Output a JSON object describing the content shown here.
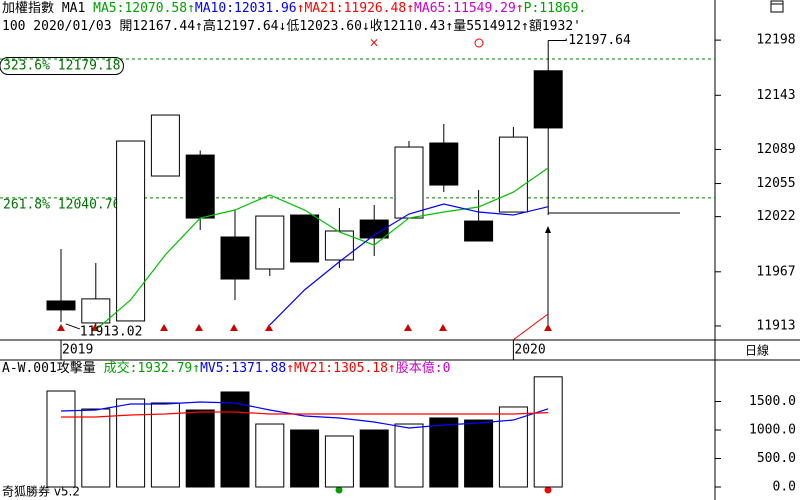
{
  "chart_data": [
    {
      "type": "candlestick",
      "header": [
        {
          "text": "加權指數 MA1 ",
          "color": "#000000"
        },
        {
          "text": "MA5:12070.58",
          "color": "#00a000"
        },
        {
          "text": "↑",
          "color": "#00a000"
        },
        {
          "text": "MA10:12031.96",
          "color": "#0000ff"
        },
        {
          "text": "↑",
          "color": "#ff0000"
        },
        {
          "text": "MA21:11926.48",
          "color": "#ff0000"
        },
        {
          "text": "↑",
          "color": "#ff0000"
        },
        {
          "text": "MA65:11549.29",
          "color": "#cc00cc"
        },
        {
          "text": "↑",
          "color": "#ff0000"
        },
        {
          "text": "P:11869.",
          "color": "#00a000"
        }
      ],
      "info": [
        {
          "text": "100 2020/01/03 ",
          "color": "#000000"
        },
        {
          "text": "開12167.44↑",
          "color": "#000000"
        },
        {
          "text": "高12197.64↓",
          "color": "#000000"
        },
        {
          "text": "低12023.60↓",
          "color": "#000000"
        },
        {
          "text": "收12110.43↑",
          "color": "#000000"
        },
        {
          "text": "量5514912↑",
          "color": "#000000"
        },
        {
          "text": "額1932'",
          "color": "#000000"
        }
      ],
      "categories": [
        "2019",
        null,
        null,
        null,
        null,
        null,
        null,
        null,
        null,
        null,
        null,
        null,
        null,
        "2020",
        null
      ],
      "open": [
        11937.9,
        11916.0,
        11918.0,
        12062.5,
        12083.4,
        12001.7,
        11969.8,
        12023.6,
        11978.8,
        12018.6,
        12020.6,
        12095.4,
        12017.6,
        12026.6,
        12167.44
      ],
      "high": [
        11989.7,
        11975.8,
        12097.4,
        12123.3,
        12088.0,
        12028.6,
        12022.6,
        12023.6,
        12030.6,
        12033.6,
        12097.4,
        12114.3,
        12048.5,
        12111.3,
        12197.64
      ],
      "low": [
        11917.0,
        11913.02,
        11918.0,
        12062.5,
        12008.7,
        11938.9,
        11962.8,
        11976.8,
        11970.8,
        11982.8,
        12020.6,
        12046.5,
        11997.7,
        12026.6,
        12023.6
      ],
      "close": [
        11929.0,
        11940.0,
        12097.4,
        12123.3,
        12020.6,
        11959.8,
        12022.6,
        11976.8,
        12007.7,
        12000.7,
        12091.4,
        12053.5,
        11997.7,
        12101.3,
        12110.43
      ],
      "series": [
        {
          "color": "#00c000",
          "values": [
            null,
            11909,
            11939,
            11984,
            12020.6,
            12028.6,
            12043.6,
            12028.6,
            12006.7,
            11993.7,
            12020.6,
            12026.6,
            12031.6,
            12046.5,
            12070.58
          ]
        },
        {
          "color": "#0000ff",
          "values": [
            null,
            null,
            null,
            null,
            null,
            null,
            11914,
            11949,
            11977,
            12003.7,
            12024.6,
            12034.6,
            12026.6,
            12023.6,
            12031.96
          ]
        }
      ],
      "levels": [
        {
          "label": "323.6% 12179.18",
          "value": 12179.18
        },
        {
          "label": "261.8% 12040.76",
          "value": 12040.76
        }
      ],
      "high_label": 12197.64,
      "low_label": 11913.02,
      "ylim": [
        11899,
        12238
      ],
      "yticks": [
        11913,
        11967,
        12022,
        12055,
        12089,
        12143,
        12198
      ],
      "period": "日線"
    },
    {
      "type": "bar",
      "header": [
        {
          "text": "A-W.001攻擊量 ",
          "color": "#000000"
        },
        {
          "text": "成交:1932.79",
          "color": "#00a000"
        },
        {
          "text": "↑",
          "color": "#00a000"
        },
        {
          "text": "MV5:1371.88",
          "color": "#0000ff"
        },
        {
          "text": "↑",
          "color": "#ff0000"
        },
        {
          "text": "MV21:1305.18",
          "color": "#ff0000"
        },
        {
          "text": "↑",
          "color": "#ff0000"
        },
        {
          "text": "股本億:0",
          "color": "#cc00cc"
        }
      ],
      "values": [
        1684,
        1368,
        1544,
        1474,
        1351,
        1667,
        1105,
        1000,
        895,
        1000,
        1105,
        1211,
        1175,
        1404,
        1932.79
      ],
      "colors": [
        "#ffffff",
        "#ffffff",
        "#ffffff",
        "#ffffff",
        "#000000",
        "#000000",
        "#ffffff",
        "#000000",
        "#ffffff",
        "#000000",
        "#ffffff",
        "#000000",
        "#000000",
        "#ffffff",
        "#ffffff"
      ],
      "series": [
        {
          "color": "#0000ff",
          "values": [
            1333,
            1351,
            1456,
            1456,
            1491,
            1474,
            1351,
            1246,
            1211,
            1140,
            1035,
            1088,
            1123,
            1175,
            1371.88
          ]
        },
        {
          "color": "#ff0000",
          "values": [
            1228,
            1228,
            1263,
            1281,
            1316,
            1316,
            1281,
            1281,
            1281,
            1281,
            1281,
            1281,
            1281,
            1281,
            1305.18
          ]
        }
      ],
      "ylim": [
        -228,
        2228
      ],
      "yticks": [
        {
          "value": 0,
          "label": "0.0"
        },
        {
          "value": 500,
          "label": "500.0"
        },
        {
          "value": 1000,
          "label": "1000.0"
        },
        {
          "value": 1500,
          "label": "1500.0"
        }
      ],
      "footer": "奇狐勝券 v5.2"
    }
  ]
}
